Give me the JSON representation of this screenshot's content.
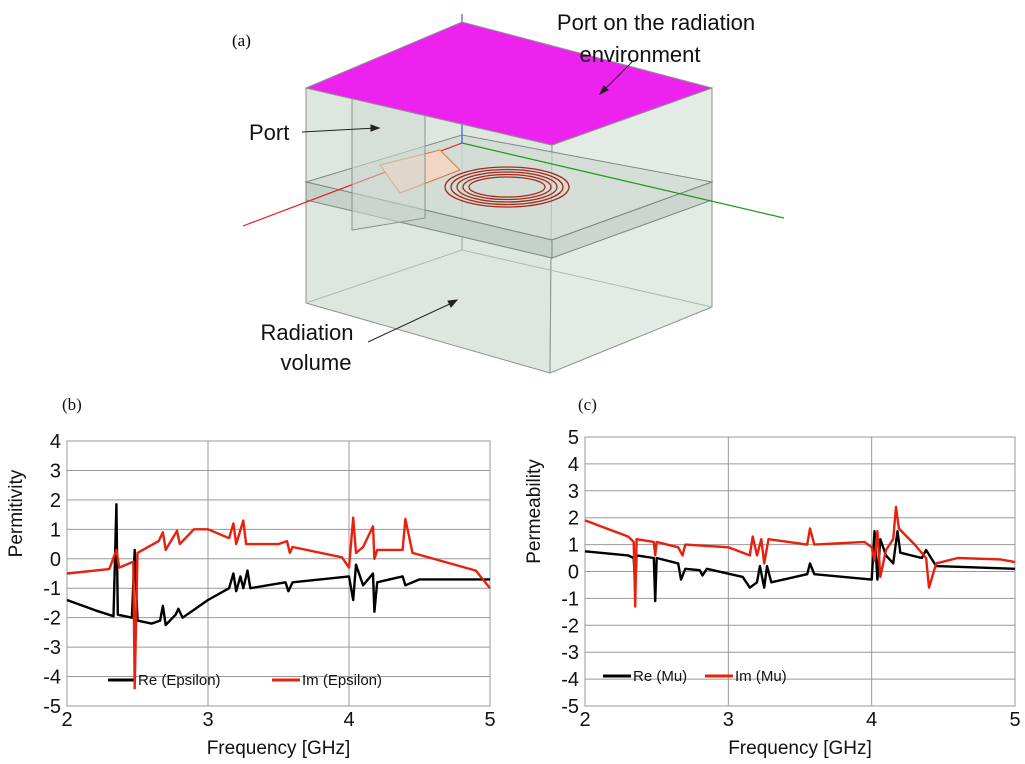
{
  "figure": {
    "panel_label": "(a)",
    "port_env_label": [
      "Port on the radiation",
      "environment"
    ],
    "port_label": "Port",
    "volume_label": [
      "Radiation",
      "volume"
    ]
  },
  "chart_data": [
    {
      "type": "line",
      "panel_label": "(b)",
      "xlabel": "Frequency [GHz]",
      "ylabel": "Permitivity",
      "xlim": [
        2,
        5
      ],
      "xticks": [
        2,
        3,
        4,
        5
      ],
      "ylim": [
        -5,
        4
      ],
      "yticks": [
        -5,
        -4,
        -3,
        -2,
        -1,
        0,
        1,
        2,
        3,
        4
      ],
      "grid": true,
      "series": [
        {
          "name": "Re (Epsilon)",
          "color": "#000000",
          "x": [
            2,
            2.2,
            2.33,
            2.35,
            2.36,
            2.46,
            2.48,
            2.5,
            2.6,
            2.66,
            2.68,
            2.7,
            2.77,
            2.79,
            2.82,
            3.0,
            3.15,
            3.18,
            3.2,
            3.23,
            3.25,
            3.28,
            3.3,
            3.55,
            3.57,
            3.6,
            4.0,
            4.03,
            4.05,
            4.1,
            4.17,
            4.18,
            4.2,
            4.38,
            4.4,
            4.5,
            5
          ],
          "values": [
            -1.4,
            -1.75,
            -1.95,
            1.85,
            -1.9,
            -2.0,
            0.3,
            -2.1,
            -2.2,
            -2.1,
            -1.6,
            -2.25,
            -1.9,
            -1.7,
            -2.0,
            -1.4,
            -1.0,
            -0.5,
            -1.1,
            -0.6,
            -1.0,
            -0.4,
            -1.0,
            -0.8,
            -1.1,
            -0.8,
            -0.6,
            -1.4,
            -0.2,
            -0.9,
            -0.5,
            -1.8,
            -0.8,
            -0.6,
            -0.9,
            -0.7,
            -0.7
          ]
        },
        {
          "name": "Im (Epsilon)",
          "color": "#e8210e",
          "x": [
            2,
            2.3,
            2.35,
            2.37,
            2.47,
            2.48,
            2.5,
            2.65,
            2.68,
            2.7,
            2.78,
            2.8,
            2.9,
            3.0,
            3.15,
            3.18,
            3.2,
            3.25,
            3.27,
            3.5,
            3.56,
            3.58,
            3.6,
            3.95,
            4.0,
            4.03,
            4.05,
            4.1,
            4.17,
            4.18,
            4.2,
            4.38,
            4.4,
            4.45,
            4.9,
            5
          ],
          "values": [
            -0.5,
            -0.35,
            0.3,
            -0.3,
            -0.1,
            -4.4,
            0.2,
            0.6,
            0.9,
            0.3,
            0.95,
            0.5,
            1.0,
            1.0,
            0.7,
            1.2,
            0.5,
            1.3,
            0.5,
            0.5,
            0.6,
            0.2,
            0.4,
            0.05,
            -0.3,
            1.4,
            0.2,
            0.4,
            1.1,
            0.0,
            0.3,
            0.3,
            1.35,
            0.2,
            -0.4,
            -1.0
          ]
        }
      ]
    },
    {
      "type": "line",
      "panel_label": "(c)",
      "xlabel": "Frequency [GHz]",
      "ylabel": "Permeability",
      "xlim": [
        2,
        5
      ],
      "xticks": [
        2,
        3,
        4,
        5
      ],
      "ylim": [
        -5,
        5
      ],
      "yticks": [
        -5,
        -4,
        -3,
        -2,
        -1,
        0,
        1,
        2,
        3,
        4,
        5
      ],
      "grid": true,
      "series": [
        {
          "name": "Re (Mu)",
          "color": "#000000",
          "x": [
            2,
            2.3,
            2.34,
            2.35,
            2.36,
            2.48,
            2.49,
            2.5,
            2.65,
            2.67,
            2.7,
            2.8,
            2.82,
            2.85,
            3.1,
            3.15,
            3.2,
            3.22,
            3.25,
            3.27,
            3.3,
            3.55,
            3.57,
            3.6,
            4.0,
            4.02,
            4.04,
            4.06,
            4.1,
            4.15,
            4.18,
            4.2,
            4.35,
            4.38,
            4.45,
            5
          ],
          "values": [
            0.75,
            0.6,
            0.5,
            -0.5,
            0.6,
            0.5,
            -1.1,
            0.5,
            0.3,
            -0.3,
            0.1,
            0.05,
            -0.15,
            0.1,
            -0.2,
            -0.6,
            -0.4,
            0.2,
            -0.6,
            0.2,
            -0.4,
            -0.1,
            0.3,
            -0.1,
            -0.3,
            1.5,
            -0.3,
            1.2,
            0.6,
            0.3,
            1.5,
            0.7,
            0.5,
            0.8,
            0.2,
            0.1
          ]
        },
        {
          "name": "Im (Mu)",
          "color": "#e8210e",
          "x": [
            2,
            2.3,
            2.34,
            2.35,
            2.36,
            2.48,
            2.49,
            2.5,
            2.65,
            2.68,
            2.7,
            3.0,
            3.15,
            3.17,
            3.2,
            3.23,
            3.25,
            3.28,
            3.55,
            3.57,
            3.6,
            3.95,
            4.0,
            4.02,
            4.04,
            4.06,
            4.1,
            4.15,
            4.17,
            4.19,
            4.3,
            4.38,
            4.4,
            4.45,
            4.6,
            4.9,
            5
          ],
          "values": [
            1.9,
            1.3,
            1.1,
            -1.3,
            1.2,
            1.1,
            0.6,
            1.1,
            0.9,
            0.6,
            1.0,
            0.9,
            0.6,
            1.3,
            0.6,
            1.2,
            0.3,
            1.2,
            1.0,
            1.6,
            1.0,
            1.1,
            0.9,
            0.4,
            1.5,
            -0.2,
            0.8,
            1.2,
            2.4,
            1.6,
            1.0,
            0.5,
            -0.6,
            0.3,
            0.5,
            0.45,
            0.35
          ]
        }
      ]
    }
  ]
}
